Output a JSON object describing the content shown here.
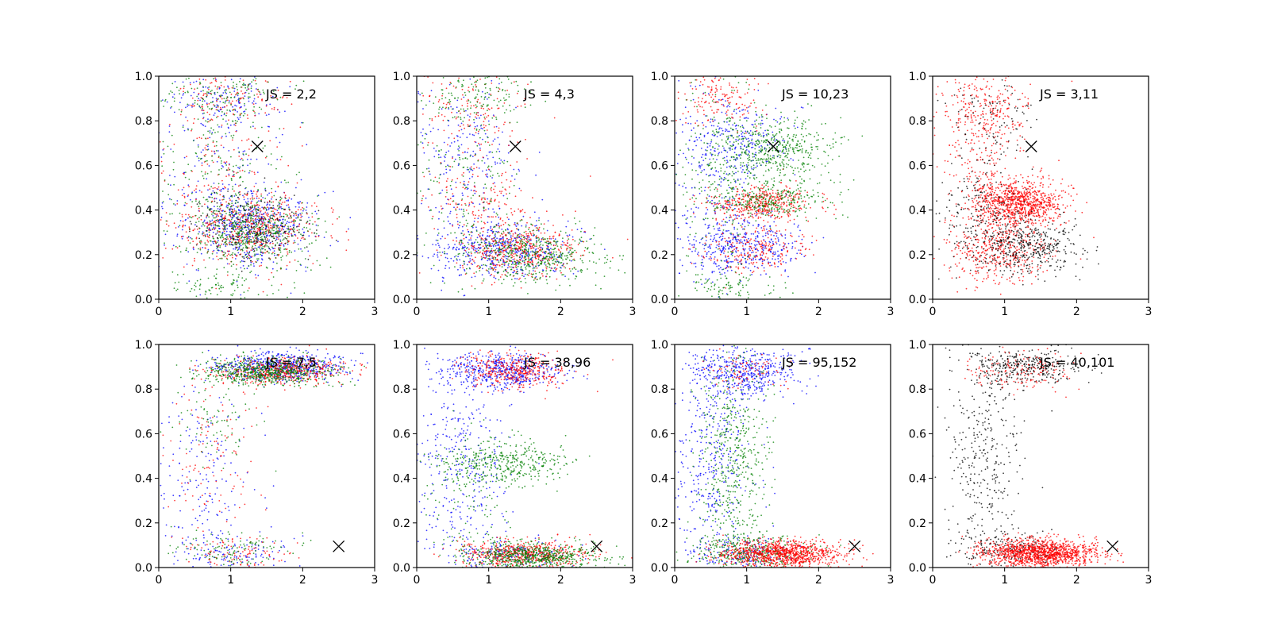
{
  "chart_data": [
    {
      "type": "scatter",
      "annotation": "JS = 2,2",
      "marker": {
        "x": 1.37,
        "y": 0.685,
        "symbol": "x",
        "color": "#000000"
      },
      "xlim": [
        0,
        3
      ],
      "ylim": [
        0,
        1
      ],
      "xticks": [
        "0",
        "1",
        "2",
        "3"
      ],
      "yticks": [
        "0.0",
        "0.2",
        "0.4",
        "0.6",
        "0.8",
        "1.0"
      ],
      "series": [
        {
          "color": "#0000ff",
          "clusters": [
            {
              "x": 1.3,
              "y": 0.32,
              "sx": 0.4,
              "sy": 0.08,
              "n": 520
            },
            {
              "x": 0.9,
              "y": 0.9,
              "sx": 0.4,
              "sy": 0.06,
              "n": 130
            },
            {
              "x": 0.8,
              "y": 0.55,
              "sx": 0.5,
              "sy": 0.2,
              "n": 220
            }
          ]
        },
        {
          "color": "#ff0000",
          "clusters": [
            {
              "x": 1.3,
              "y": 0.32,
              "sx": 0.45,
              "sy": 0.08,
              "n": 480
            },
            {
              "x": 0.9,
              "y": 0.9,
              "sx": 0.4,
              "sy": 0.06,
              "n": 130
            },
            {
              "x": 0.8,
              "y": 0.55,
              "sx": 0.5,
              "sy": 0.2,
              "n": 200
            }
          ]
        },
        {
          "color": "#008000",
          "clusters": [
            {
              "x": 1.3,
              "y": 0.31,
              "sx": 0.4,
              "sy": 0.08,
              "n": 540
            },
            {
              "x": 0.9,
              "y": 0.9,
              "sx": 0.4,
              "sy": 0.06,
              "n": 150
            },
            {
              "x": 0.8,
              "y": 0.55,
              "sx": 0.5,
              "sy": 0.2,
              "n": 200
            },
            {
              "x": 0.9,
              "y": 0.05,
              "sx": 0.4,
              "sy": 0.04,
              "n": 100
            }
          ]
        },
        {
          "color": "#000000",
          "clusters": [
            {
              "x": 1.3,
              "y": 0.33,
              "sx": 0.4,
              "sy": 0.08,
              "n": 200
            }
          ]
        }
      ]
    },
    {
      "type": "scatter",
      "annotation": "JS = 4,3",
      "marker": {
        "x": 1.37,
        "y": 0.685,
        "symbol": "x",
        "color": "#000000"
      },
      "xlim": [
        0,
        3
      ],
      "ylim": [
        0,
        1
      ],
      "xticks": [
        "0",
        "1",
        "2",
        "3"
      ],
      "yticks": [
        "0.0",
        "0.2",
        "0.4",
        "0.6",
        "0.8",
        "1.0"
      ],
      "series": [
        {
          "color": "#0000ff",
          "clusters": [
            {
              "x": 1.2,
              "y": 0.22,
              "sx": 0.45,
              "sy": 0.06,
              "n": 480
            },
            {
              "x": 0.7,
              "y": 0.6,
              "sx": 0.4,
              "sy": 0.22,
              "n": 260
            }
          ]
        },
        {
          "color": "#ff0000",
          "clusters": [
            {
              "x": 1.4,
              "y": 0.22,
              "sx": 0.4,
              "sy": 0.06,
              "n": 460
            },
            {
              "x": 0.9,
              "y": 0.45,
              "sx": 0.4,
              "sy": 0.08,
              "n": 150
            },
            {
              "x": 0.8,
              "y": 0.85,
              "sx": 0.4,
              "sy": 0.1,
              "n": 150
            }
          ]
        },
        {
          "color": "#008000",
          "clusters": [
            {
              "x": 1.6,
              "y": 0.2,
              "sx": 0.45,
              "sy": 0.06,
              "n": 520
            },
            {
              "x": 0.8,
              "y": 0.9,
              "sx": 0.4,
              "sy": 0.07,
              "n": 160
            },
            {
              "x": 0.6,
              "y": 0.5,
              "sx": 0.35,
              "sy": 0.2,
              "n": 160
            }
          ]
        }
      ]
    },
    {
      "type": "scatter",
      "annotation": "JS = 10,23",
      "marker": {
        "x": 1.37,
        "y": 0.685,
        "symbol": "x",
        "color": "#000000"
      },
      "xlim": [
        0,
        3
      ],
      "ylim": [
        0,
        1
      ],
      "xticks": [
        "0",
        "1",
        "2",
        "3"
      ],
      "yticks": [
        "0.0",
        "0.2",
        "0.4",
        "0.6",
        "0.8",
        "1.0"
      ],
      "series": [
        {
          "color": "#0000ff",
          "clusters": [
            {
              "x": 1.0,
              "y": 0.24,
              "sx": 0.4,
              "sy": 0.06,
              "n": 380
            },
            {
              "x": 0.9,
              "y": 0.7,
              "sx": 0.35,
              "sy": 0.08,
              "n": 220
            },
            {
              "x": 0.5,
              "y": 0.5,
              "sx": 0.3,
              "sy": 0.25,
              "n": 240
            }
          ]
        },
        {
          "color": "#ff0000",
          "clusters": [
            {
              "x": 1.2,
              "y": 0.43,
              "sx": 0.35,
              "sy": 0.04,
              "n": 420
            },
            {
              "x": 1.1,
              "y": 0.22,
              "sx": 0.35,
              "sy": 0.05,
              "n": 220
            },
            {
              "x": 0.6,
              "y": 0.9,
              "sx": 0.3,
              "sy": 0.06,
              "n": 150
            }
          ]
        },
        {
          "color": "#008000",
          "clusters": [
            {
              "x": 1.4,
              "y": 0.68,
              "sx": 0.4,
              "sy": 0.07,
              "n": 480
            },
            {
              "x": 1.3,
              "y": 0.44,
              "sx": 0.4,
              "sy": 0.04,
              "n": 300
            },
            {
              "x": 0.6,
              "y": 0.5,
              "sx": 0.3,
              "sy": 0.25,
              "n": 200
            },
            {
              "x": 0.8,
              "y": 0.05,
              "sx": 0.3,
              "sy": 0.04,
              "n": 100
            }
          ]
        }
      ]
    },
    {
      "type": "scatter",
      "annotation": "JS = 3,11",
      "marker": {
        "x": 1.37,
        "y": 0.685,
        "symbol": "x",
        "color": "#000000"
      },
      "xlim": [
        0,
        3
      ],
      "ylim": [
        0,
        1
      ],
      "xticks": [
        "0",
        "1",
        "2",
        "3"
      ],
      "yticks": [
        "0.0",
        "0.2",
        "0.4",
        "0.6",
        "0.8",
        "1.0"
      ],
      "series": [
        {
          "color": "#ff0000",
          "clusters": [
            {
              "x": 1.2,
              "y": 0.43,
              "sx": 0.3,
              "sy": 0.05,
              "n": 900
            },
            {
              "x": 0.9,
              "y": 0.22,
              "sx": 0.35,
              "sy": 0.07,
              "n": 450
            },
            {
              "x": 0.8,
              "y": 0.85,
              "sx": 0.3,
              "sy": 0.1,
              "n": 250
            },
            {
              "x": 0.7,
              "y": 0.6,
              "sx": 0.3,
              "sy": 0.15,
              "n": 200
            }
          ]
        },
        {
          "color": "#000000",
          "clusters": [
            {
              "x": 1.3,
              "y": 0.24,
              "sx": 0.35,
              "sy": 0.06,
              "n": 450
            },
            {
              "x": 0.6,
              "y": 0.4,
              "sx": 0.3,
              "sy": 0.12,
              "n": 180
            },
            {
              "x": 0.8,
              "y": 0.8,
              "sx": 0.3,
              "sy": 0.12,
              "n": 100
            }
          ]
        }
      ]
    },
    {
      "type": "scatter",
      "annotation": "JS = 7,5",
      "marker": {
        "x": 2.5,
        "y": 0.095,
        "symbol": "x",
        "color": "#000000"
      },
      "xlim": [
        0,
        3
      ],
      "ylim": [
        0,
        1
      ],
      "xticks": [
        "0",
        "1",
        "2",
        "3"
      ],
      "yticks": [
        "0.0",
        "0.2",
        "0.4",
        "0.6",
        "0.8",
        "1.0"
      ],
      "series": [
        {
          "color": "#0000ff",
          "clusters": [
            {
              "x": 1.7,
              "y": 0.9,
              "sx": 0.45,
              "sy": 0.03,
              "n": 600
            },
            {
              "x": 1.0,
              "y": 0.06,
              "sx": 0.4,
              "sy": 0.04,
              "n": 120
            },
            {
              "x": 0.6,
              "y": 0.45,
              "sx": 0.35,
              "sy": 0.2,
              "n": 180
            }
          ]
        },
        {
          "color": "#ff0000",
          "clusters": [
            {
              "x": 1.7,
              "y": 0.88,
              "sx": 0.45,
              "sy": 0.03,
              "n": 500
            },
            {
              "x": 1.0,
              "y": 0.06,
              "sx": 0.4,
              "sy": 0.04,
              "n": 100
            },
            {
              "x": 0.7,
              "y": 0.5,
              "sx": 0.35,
              "sy": 0.2,
              "n": 120
            }
          ]
        },
        {
          "color": "#008000",
          "clusters": [
            {
              "x": 1.5,
              "y": 0.88,
              "sx": 0.45,
              "sy": 0.03,
              "n": 600
            },
            {
              "x": 1.0,
              "y": 0.07,
              "sx": 0.4,
              "sy": 0.04,
              "n": 120
            },
            {
              "x": 0.8,
              "y": 0.65,
              "sx": 0.3,
              "sy": 0.12,
              "n": 80
            }
          ]
        }
      ]
    },
    {
      "type": "scatter",
      "annotation": "JS = 38,96",
      "marker": {
        "x": 2.5,
        "y": 0.095,
        "symbol": "x",
        "color": "#000000"
      },
      "xlim": [
        0,
        3
      ],
      "ylim": [
        0,
        1
      ],
      "xticks": [
        "0",
        "1",
        "2",
        "3"
      ],
      "yticks": [
        "0.0",
        "0.2",
        "0.4",
        "0.6",
        "0.8",
        "1.0"
      ],
      "series": [
        {
          "color": "#0000ff",
          "clusters": [
            {
              "x": 1.2,
              "y": 0.88,
              "sx": 0.4,
              "sy": 0.04,
              "n": 500
            },
            {
              "x": 0.6,
              "y": 0.45,
              "sx": 0.35,
              "sy": 0.25,
              "n": 400
            },
            {
              "x": 1.3,
              "y": 0.06,
              "sx": 0.4,
              "sy": 0.03,
              "n": 150
            }
          ]
        },
        {
          "color": "#ff0000",
          "clusters": [
            {
              "x": 1.5,
              "y": 0.06,
              "sx": 0.45,
              "sy": 0.03,
              "n": 560
            },
            {
              "x": 1.4,
              "y": 0.88,
              "sx": 0.35,
              "sy": 0.04,
              "n": 380
            }
          ]
        },
        {
          "color": "#008000",
          "clusters": [
            {
              "x": 1.6,
              "y": 0.05,
              "sx": 0.45,
              "sy": 0.03,
              "n": 650
            },
            {
              "x": 1.2,
              "y": 0.47,
              "sx": 0.45,
              "sy": 0.05,
              "n": 400
            },
            {
              "x": 0.7,
              "y": 0.3,
              "sx": 0.3,
              "sy": 0.15,
              "n": 100
            }
          ]
        }
      ]
    },
    {
      "type": "scatter",
      "annotation": "JS = 95,152",
      "marker": {
        "x": 2.5,
        "y": 0.095,
        "symbol": "x",
        "color": "#000000"
      },
      "xlim": [
        0,
        3
      ],
      "ylim": [
        0,
        1
      ],
      "xticks": [
        "0",
        "1",
        "2",
        "3"
      ],
      "yticks": [
        "0.0",
        "0.2",
        "0.4",
        "0.6",
        "0.8",
        "1.0"
      ],
      "series": [
        {
          "color": "#0000ff",
          "clusters": [
            {
              "x": 1.0,
              "y": 0.88,
              "sx": 0.35,
              "sy": 0.05,
              "n": 450
            },
            {
              "x": 0.5,
              "y": 0.5,
              "sx": 0.3,
              "sy": 0.25,
              "n": 400
            },
            {
              "x": 1.0,
              "y": 0.06,
              "sx": 0.3,
              "sy": 0.04,
              "n": 150
            }
          ]
        },
        {
          "color": "#008000",
          "clusters": [
            {
              "x": 0.8,
              "y": 0.5,
              "sx": 0.25,
              "sy": 0.25,
              "n": 550
            },
            {
              "x": 1.1,
              "y": 0.07,
              "sx": 0.4,
              "sy": 0.04,
              "n": 350
            }
          ]
        },
        {
          "color": "#ff0000",
          "clusters": [
            {
              "x": 1.5,
              "y": 0.06,
              "sx": 0.4,
              "sy": 0.03,
              "n": 1000
            },
            {
              "x": 1.0,
              "y": 0.88,
              "sx": 0.3,
              "sy": 0.04,
              "n": 80
            }
          ]
        }
      ]
    },
    {
      "type": "scatter",
      "annotation": "JS = 40,101",
      "marker": {
        "x": 2.5,
        "y": 0.095,
        "symbol": "x",
        "color": "#000000"
      },
      "xlim": [
        0,
        3
      ],
      "ylim": [
        0,
        1
      ],
      "xticks": [
        "0",
        "1",
        "2",
        "3"
      ],
      "yticks": [
        "0.0",
        "0.2",
        "0.4",
        "0.6",
        "0.8",
        "1.0"
      ],
      "series": [
        {
          "color": "#000000",
          "clusters": [
            {
              "x": 1.3,
              "y": 0.9,
              "sx": 0.4,
              "sy": 0.04,
              "n": 350
            },
            {
              "x": 0.7,
              "y": 0.5,
              "sx": 0.25,
              "sy": 0.25,
              "n": 350
            },
            {
              "x": 1.1,
              "y": 0.08,
              "sx": 0.35,
              "sy": 0.04,
              "n": 200
            }
          ]
        },
        {
          "color": "#ff0000",
          "clusters": [
            {
              "x": 1.5,
              "y": 0.065,
              "sx": 0.4,
              "sy": 0.03,
              "n": 1300
            },
            {
              "x": 1.2,
              "y": 0.88,
              "sx": 0.35,
              "sy": 0.04,
              "n": 150
            }
          ]
        }
      ]
    }
  ]
}
